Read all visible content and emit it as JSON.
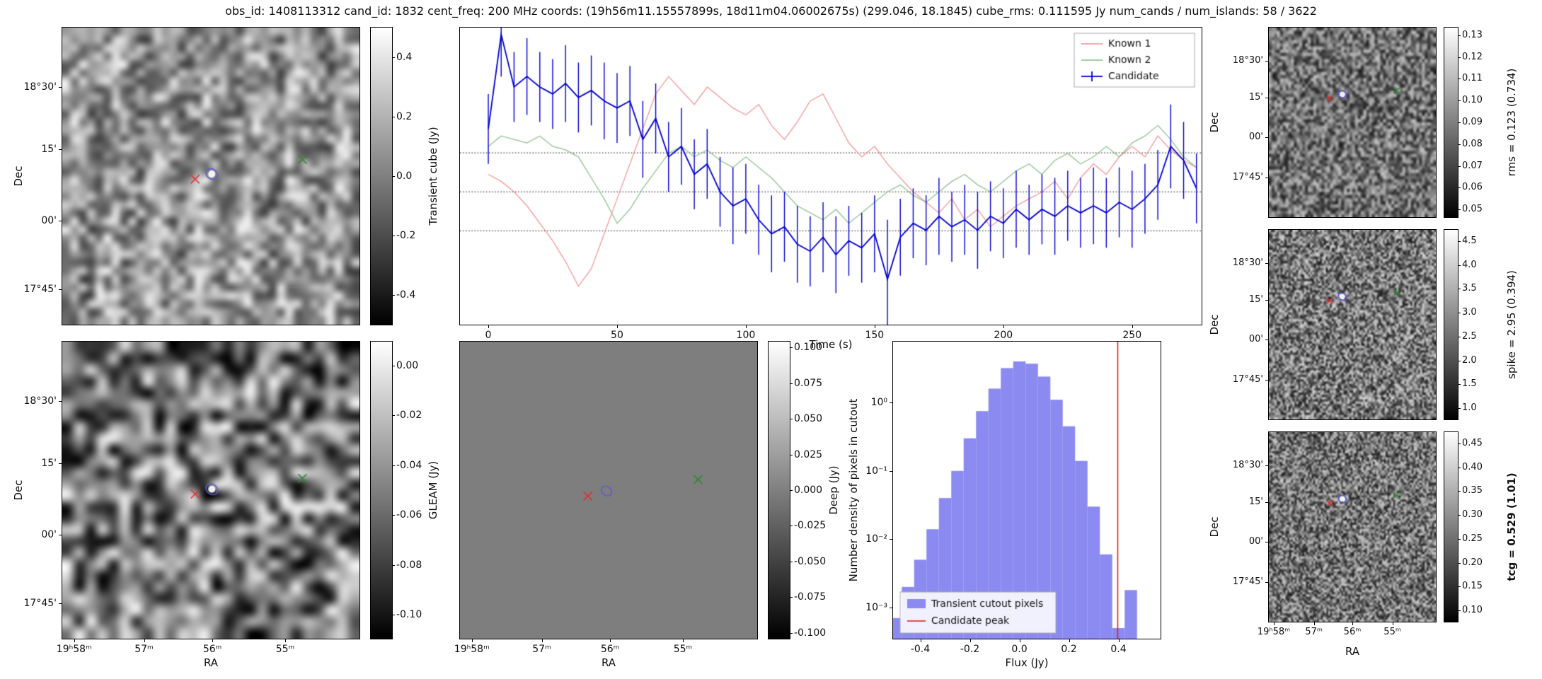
{
  "title": "obs_id: 1408113312 cand_id: 1832 cent_freq: 200 MHz coords: (19h56m11.15557899s, 18d11m04.06002675s) (299.046, 18.1845) cube_rms: 0.111595 Jy num_cands / num_islands: 58 / 3622",
  "colors": {
    "known1": "#f08080",
    "known2": "#74b574",
    "candidate": "#0000d0",
    "hist_fill": "#8a8af0",
    "peak_line": "#e02020",
    "source_marker_red": "#e03030",
    "source_marker_green": "#2d8a2d",
    "island_contour": "#5c5cd6",
    "deep_gray": "#7e7e7e"
  },
  "axes": {
    "dec_label": "Dec",
    "ra_label": "RA",
    "left_dec_ticks": [
      {
        "label": "18°30'",
        "pos": 20
      },
      {
        "label": "15'",
        "pos": 41
      },
      {
        "label": "00'",
        "pos": 65
      },
      {
        "label": "17°45'",
        "pos": 88
      }
    ],
    "left_ra_ticks": [
      {
        "label": "19ʰ58ᵐ",
        "pos": 4
      },
      {
        "label": "57ᵐ",
        "pos": 27.5
      },
      {
        "label": "56ᵐ",
        "pos": 50.5
      },
      {
        "label": "55ᵐ",
        "pos": 75
      }
    ],
    "right_dec_ticks": [
      {
        "label": "18°30'",
        "pos": 17.6
      },
      {
        "label": "15'",
        "pos": 37
      },
      {
        "label": "00'",
        "pos": 58
      },
      {
        "label": "17°45'",
        "pos": 79
      }
    ],
    "right_ra_ticks": [
      {
        "label": "19ʰ58ᵐ",
        "pos": 3
      },
      {
        "label": "57ᵐ",
        "pos": 27
      },
      {
        "label": "56ᵐ",
        "pos": 50
      },
      {
        "label": "55ᵐ",
        "pos": 74
      }
    ]
  },
  "colorbars": {
    "transient_cube": {
      "label": "Transient cube (Jy)",
      "ticks": [
        {
          "label": "0.4",
          "pos": 10
        },
        {
          "label": "0.2",
          "pos": 30
        },
        {
          "label": "0.0",
          "pos": 50
        },
        {
          "label": "-0.2",
          "pos": 70
        },
        {
          "label": "-0.4",
          "pos": 90
        }
      ]
    },
    "gleam": {
      "label": "GLEAM (Jy)",
      "ticks": [
        {
          "label": "0.00",
          "pos": 8
        },
        {
          "label": "-0.02",
          "pos": 24.8
        },
        {
          "label": "-0.04",
          "pos": 41.6
        },
        {
          "label": "-0.06",
          "pos": 58.4
        },
        {
          "label": "-0.08",
          "pos": 75.2
        },
        {
          "label": "-0.10",
          "pos": 92
        }
      ]
    },
    "deep": {
      "label": "Deep (Jy)",
      "ticks": [
        {
          "label": "0.100",
          "pos": 2
        },
        {
          "label": "0.075",
          "pos": 14
        },
        {
          "label": "0.050",
          "pos": 26
        },
        {
          "label": "0.025",
          "pos": 38
        },
        {
          "label": "0.000",
          "pos": 50
        },
        {
          "label": "-0.025",
          "pos": 62
        },
        {
          "label": "-0.050",
          "pos": 74
        },
        {
          "label": "-0.075",
          "pos": 86
        },
        {
          "label": "-0.100",
          "pos": 98
        }
      ]
    },
    "rms": {
      "label": "rms = 0.123 (0.734)",
      "ticks": [
        {
          "label": "0.13",
          "pos": 4
        },
        {
          "label": "0.12",
          "pos": 15.5
        },
        {
          "label": "0.11",
          "pos": 27
        },
        {
          "label": "0.10",
          "pos": 38.5
        },
        {
          "label": "0.09",
          "pos": 50
        },
        {
          "label": "0.08",
          "pos": 61.5
        },
        {
          "label": "0.07",
          "pos": 73
        },
        {
          "label": "0.06",
          "pos": 84.5
        },
        {
          "label": "0.05",
          "pos": 96
        }
      ]
    },
    "spike": {
      "label": "spike = 2.95 (0.394)",
      "ticks": [
        {
          "label": "4.5",
          "pos": 6
        },
        {
          "label": "4.0",
          "pos": 18.6
        },
        {
          "label": "3.5",
          "pos": 31.1
        },
        {
          "label": "3.0",
          "pos": 43.7
        },
        {
          "label": "2.5",
          "pos": 56.3
        },
        {
          "label": "2.0",
          "pos": 68.9
        },
        {
          "label": "1.5",
          "pos": 81.4
        },
        {
          "label": "1.0",
          "pos": 94
        }
      ]
    },
    "tcg": {
      "label": "tcg = 0.529 (1.01)",
      "bold": true,
      "ticks": [
        {
          "label": "0.45",
          "pos": 6
        },
        {
          "label": "0.40",
          "pos": 18.6
        },
        {
          "label": "0.35",
          "pos": 31.1
        },
        {
          "label": "0.30",
          "pos": 43.7
        },
        {
          "label": "0.25",
          "pos": 56.3
        },
        {
          "label": "0.20",
          "pos": 68.9
        },
        {
          "label": "0.15",
          "pos": 81.4
        },
        {
          "label": "0.10",
          "pos": 94
        }
      ]
    }
  },
  "markers": {
    "transient_cube": {
      "red_x": [
        44.7,
        51.0
      ],
      "circle": [
        50.3,
        49.3
      ],
      "green_x": [
        80.8,
        44.4
      ]
    },
    "gleam": {
      "red_x": [
        44.7,
        51.3
      ],
      "circle": [
        50.3,
        49.7
      ],
      "green_x": [
        80.8,
        46.0
      ]
    },
    "deep": {
      "red_x": [
        43.0,
        52.0
      ],
      "circle": [
        49.3,
        50.3
      ],
      "green_x": [
        80.1,
        46.4
      ]
    },
    "right": {
      "red_x": [
        36.5,
        37.3
      ],
      "circle": [
        44.0,
        35.2
      ],
      "green_x": [
        76.5,
        33.2
      ]
    }
  },
  "chart_data": [
    {
      "id": "lightcurve",
      "type": "line",
      "xlabel": "Time (s)",
      "xlim": [
        -11,
        277
      ],
      "ylim": [
        -0.38,
        0.47
      ],
      "xticks": [
        0,
        50,
        100,
        150,
        200,
        250
      ],
      "hlines": [
        0.111595,
        0.0,
        -0.111595
      ],
      "legend_position": "upper right",
      "x": [
        0,
        5,
        10,
        15,
        20,
        25,
        30,
        35,
        40,
        45,
        50,
        55,
        60,
        65,
        70,
        75,
        80,
        85,
        90,
        95,
        100,
        105,
        110,
        115,
        120,
        125,
        130,
        135,
        140,
        145,
        150,
        155,
        160,
        165,
        170,
        175,
        180,
        185,
        190,
        195,
        200,
        205,
        210,
        215,
        220,
        225,
        230,
        235,
        240,
        245,
        250,
        255,
        260,
        265,
        270,
        275
      ],
      "series": [
        {
          "name": "Known 1",
          "color": "#f08080",
          "values": [
            0.05,
            0.03,
            0.0,
            -0.04,
            -0.09,
            -0.14,
            -0.2,
            -0.27,
            -0.22,
            -0.12,
            -0.02,
            0.08,
            0.18,
            0.28,
            0.33,
            0.29,
            0.25,
            0.3,
            0.27,
            0.24,
            0.22,
            0.25,
            0.19,
            0.15,
            0.2,
            0.26,
            0.28,
            0.21,
            0.14,
            0.1,
            0.13,
            0.08,
            0.04,
            0.0,
            -0.03,
            -0.06,
            -0.02,
            -0.08,
            -0.05,
            -0.1,
            -0.07,
            -0.04,
            -0.02,
            0.0,
            0.03,
            -0.02,
            0.04,
            0.08,
            0.05,
            0.1,
            0.13,
            0.1,
            0.16,
            0.12,
            0.09,
            0.07
          ]
        },
        {
          "name": "Known 2",
          "color": "#74b574",
          "values": [
            0.13,
            0.16,
            0.15,
            0.14,
            0.16,
            0.13,
            0.12,
            0.1,
            0.04,
            -0.02,
            -0.09,
            -0.05,
            0.01,
            0.06,
            0.11,
            0.13,
            0.1,
            0.12,
            0.09,
            0.07,
            0.1,
            0.07,
            0.04,
            0.0,
            -0.04,
            -0.06,
            -0.08,
            -0.05,
            -0.09,
            -0.06,
            -0.03,
            0.0,
            0.02,
            -0.01,
            -0.03,
            0.0,
            0.03,
            0.05,
            0.02,
            0.0,
            0.03,
            0.06,
            0.08,
            0.05,
            0.09,
            0.11,
            0.08,
            0.1,
            0.13,
            0.1,
            0.14,
            0.16,
            0.19,
            0.15,
            0.1,
            0.07
          ]
        },
        {
          "name": "Candidate",
          "color": "#0000d0",
          "values": [
            0.18,
            0.45,
            0.3,
            0.33,
            0.3,
            0.28,
            0.31,
            0.27,
            0.29,
            0.26,
            0.24,
            0.26,
            0.15,
            0.21,
            0.1,
            0.13,
            0.05,
            0.08,
            0.0,
            -0.04,
            -0.02,
            -0.08,
            -0.12,
            -0.1,
            -0.15,
            -0.17,
            -0.13,
            -0.18,
            -0.14,
            -0.16,
            -0.12,
            -0.25,
            -0.13,
            -0.09,
            -0.11,
            -0.07,
            -0.1,
            -0.08,
            -0.11,
            -0.07,
            -0.09,
            -0.05,
            -0.08,
            -0.05,
            -0.07,
            -0.04,
            -0.06,
            -0.04,
            -0.06,
            -0.03,
            -0.05,
            -0.02,
            0.02,
            0.13,
            0.09,
            0.01
          ],
          "yerr": [
            0.1,
            0.12,
            0.1,
            0.11,
            0.1,
            0.1,
            0.11,
            0.1,
            0.1,
            0.11,
            0.1,
            0.1,
            0.11,
            0.1,
            0.1,
            0.11,
            0.1,
            0.1,
            0.1,
            0.11,
            0.1,
            0.1,
            0.11,
            0.1,
            0.11,
            0.1,
            0.1,
            0.11,
            0.1,
            0.1,
            0.11,
            0.17,
            0.11,
            0.1,
            0.1,
            0.11,
            0.1,
            0.1,
            0.11,
            0.1,
            0.1,
            0.11,
            0.1,
            0.1,
            0.11,
            0.1,
            0.1,
            0.11,
            0.1,
            0.1,
            0.11,
            0.1,
            0.1,
            0.12,
            0.11,
            0.1
          ]
        }
      ]
    },
    {
      "id": "flux_histogram",
      "type": "bar",
      "xlabel": "Flux (Jy)",
      "ylabel": "Number density of pixels in cutout",
      "xlim": [
        -0.51,
        0.57
      ],
      "ylog": true,
      "ylim": [
        0.00035,
        7.8
      ],
      "xticks": [
        -0.4,
        -0.2,
        0.0,
        0.2,
        0.4
      ],
      "yticks": [
        {
          "label": "10⁰",
          "value": 1
        },
        {
          "label": "10⁻¹",
          "value": 0.1
        },
        {
          "label": "10⁻²",
          "value": 0.01
        },
        {
          "label": "10⁻³",
          "value": 0.001
        }
      ],
      "bin_width": 0.05,
      "bin_centers": [
        -0.5,
        -0.45,
        -0.4,
        -0.35,
        -0.3,
        -0.25,
        -0.2,
        -0.15,
        -0.1,
        -0.05,
        0.0,
        0.05,
        0.1,
        0.15,
        0.2,
        0.25,
        0.3,
        0.35,
        0.4,
        0.45
      ],
      "densities": [
        0.0007,
        0.002,
        0.005,
        0.014,
        0.04,
        0.1,
        0.3,
        0.75,
        1.6,
        3.2,
        4.0,
        3.7,
        2.4,
        1.1,
        0.45,
        0.14,
        0.03,
        0.006,
        0.0005,
        0.0018
      ],
      "candidate_peak": 0.397,
      "legend": [
        "Transient cutout pixels",
        "Candidate peak"
      ]
    }
  ]
}
